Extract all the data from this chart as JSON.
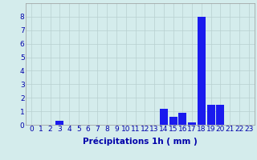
{
  "hours": [
    0,
    1,
    2,
    3,
    4,
    5,
    6,
    7,
    8,
    9,
    10,
    11,
    12,
    13,
    14,
    15,
    16,
    17,
    18,
    19,
    20,
    21,
    22,
    23
  ],
  "values": [
    0,
    0,
    0,
    0.3,
    0,
    0,
    0,
    0,
    0,
    0,
    0,
    0,
    0,
    0,
    1.2,
    0.6,
    0.9,
    0.15,
    8.0,
    1.5,
    1.5,
    0,
    0,
    0
  ],
  "bar_color": "#1a1aee",
  "background_color": "#d4ecec",
  "grid_color": "#b8d0d0",
  "xlabel": "Précipitations 1h ( mm )",
  "ylim": [
    0,
    9
  ],
  "yticks": [
    0,
    1,
    2,
    3,
    4,
    5,
    6,
    7,
    8
  ],
  "xlabel_fontsize": 7.5,
  "tick_fontsize": 6.5,
  "tick_color": "#0000aa"
}
